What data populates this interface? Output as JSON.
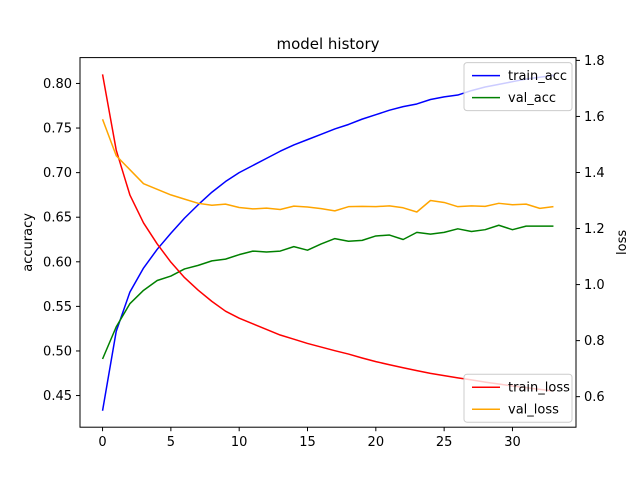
{
  "chart_data": {
    "type": "line",
    "title": "model history",
    "xlabel": "",
    "ylabel_left": "accuracy",
    "ylabel_right": "loss",
    "xlim": [
      -1.65,
      34.65
    ],
    "ylim_left": [
      0.4145,
      0.829
    ],
    "ylim_right": [
      0.491,
      1.81
    ],
    "x_ticks": [
      0,
      5,
      10,
      15,
      20,
      25,
      30
    ],
    "x_tick_labels": [
      "0",
      "5",
      "10",
      "15",
      "20",
      "25",
      "30"
    ],
    "y_left_ticks": [
      0.45,
      0.5,
      0.55,
      0.6,
      0.65,
      0.7,
      0.75,
      0.8
    ],
    "y_left_tick_labels": [
      "0.45",
      "0.50",
      "0.55",
      "0.60",
      "0.65",
      "0.70",
      "0.75",
      "0.80"
    ],
    "y_right_ticks": [
      0.6,
      0.8,
      1.0,
      1.2,
      1.4,
      1.6,
      1.8
    ],
    "y_right_tick_labels": [
      "0.6",
      "0.8",
      "1.0",
      "1.2",
      "1.4",
      "1.6",
      "1.8"
    ],
    "grid": false,
    "x": [
      0,
      1,
      2,
      3,
      4,
      5,
      6,
      7,
      8,
      9,
      10,
      11,
      12,
      13,
      14,
      15,
      16,
      17,
      18,
      19,
      20,
      21,
      22,
      23,
      24,
      25,
      26,
      27,
      28,
      29,
      30,
      31,
      32,
      33
    ],
    "series": [
      {
        "name": "train_acc",
        "axis": "left",
        "color": "#0000ff",
        "values": [
          0.433,
          0.522,
          0.566,
          0.593,
          0.614,
          0.632,
          0.649,
          0.664,
          0.678,
          0.69,
          0.7,
          0.708,
          0.716,
          0.724,
          0.731,
          0.737,
          0.743,
          0.749,
          0.754,
          0.76,
          0.765,
          0.77,
          0.774,
          0.777,
          0.782,
          0.785,
          0.787,
          0.792,
          0.796,
          0.799,
          0.802,
          0.805,
          0.807,
          0.809
        ]
      },
      {
        "name": "val_acc",
        "axis": "left",
        "color": "#008000",
        "values": [
          0.491,
          0.527,
          0.553,
          0.568,
          0.579,
          0.584,
          0.592,
          0.596,
          0.601,
          0.603,
          0.608,
          0.612,
          0.611,
          0.612,
          0.617,
          0.613,
          0.62,
          0.626,
          0.623,
          0.624,
          0.629,
          0.63,
          0.625,
          0.633,
          0.631,
          0.633,
          0.637,
          0.634,
          0.636,
          0.641,
          0.636,
          0.64,
          0.64,
          0.64
        ]
      },
      {
        "name": "train_loss",
        "axis": "right",
        "color": "#ff0000",
        "values": [
          1.75,
          1.48,
          1.32,
          1.22,
          1.145,
          1.08,
          1.025,
          0.98,
          0.94,
          0.905,
          0.88,
          0.86,
          0.84,
          0.82,
          0.805,
          0.79,
          0.777,
          0.764,
          0.752,
          0.738,
          0.725,
          0.714,
          0.703,
          0.693,
          0.683,
          0.675,
          0.667,
          0.66,
          0.652,
          0.645,
          0.638,
          0.632,
          0.626,
          0.62
        ]
      },
      {
        "name": "val_loss",
        "axis": "right",
        "color": "#ffa500",
        "values": [
          1.59,
          1.46,
          1.41,
          1.36,
          1.34,
          1.32,
          1.305,
          1.29,
          1.283,
          1.287,
          1.275,
          1.27,
          1.273,
          1.268,
          1.28,
          1.277,
          1.271,
          1.263,
          1.278,
          1.279,
          1.278,
          1.281,
          1.274,
          1.259,
          1.3,
          1.293,
          1.278,
          1.281,
          1.279,
          1.29,
          1.285,
          1.287,
          1.272,
          1.278
        ]
      }
    ],
    "legends": [
      {
        "placement": "upper right",
        "entries": [
          "train_acc",
          "val_acc"
        ]
      },
      {
        "placement": "lower right",
        "entries": [
          "train_loss",
          "val_loss"
        ]
      }
    ]
  }
}
